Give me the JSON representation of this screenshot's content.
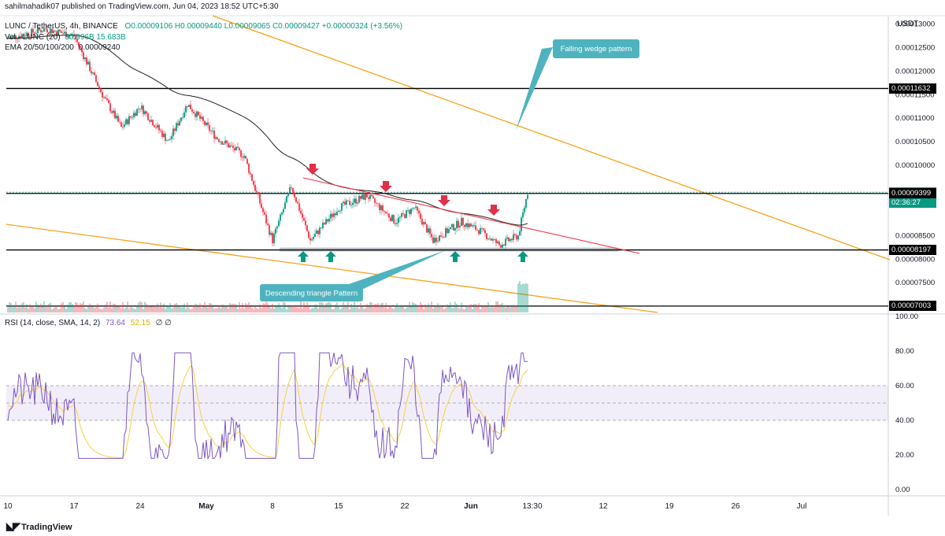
{
  "header": {
    "published": "sahilmahadik07 published on TradingView.com, Jun 04, 2023 18:52 UTC+5:30",
    "symbol": "LUNC / TetherUS, 4h, BINANCE",
    "ohlc": "O0.00009106 H0.00009440 L0.00009065 C0.00009427 +0.00000324 (+3.56%)",
    "vol_label": "Vol · LUNC (20)",
    "vol_values": "30.996B  15.683B",
    "ema_label": "EMA 20/50/100/200",
    "ema_value": "0.00009240",
    "currency": "USDT"
  },
  "price_axis": {
    "ticks": [
      "0.00013000",
      "0.00012500",
      "0.00012000",
      "0.00011500",
      "0.00011000",
      "0.00010500",
      "0.00010000",
      "0.00008500",
      "0.00008000",
      "0.00007500"
    ],
    "tick_values": [
      0.00013,
      0.000125,
      0.00012,
      0.000115,
      0.00011,
      0.000105,
      0.0001,
      8.5e-05,
      8e-05,
      7.5e-05
    ],
    "boxes": [
      {
        "text": "0.00011632",
        "value": 0.00011632,
        "color": "#000000"
      },
      {
        "text": "0.00009427",
        "value": 9.427e-05,
        "color": "#089981",
        "extra": "02:36:27"
      },
      {
        "text": "0.00009399",
        "value": 9.399e-05,
        "color": "#000000"
      },
      {
        "text": "0.00008197",
        "value": 8.197e-05,
        "color": "#000000"
      },
      {
        "text": "0.00007003",
        "value": 7.003e-05,
        "color": "#000000"
      }
    ],
    "range": [
      6.85e-05,
      0.0001318
    ]
  },
  "rsi": {
    "label": "RSI (14, close, SMA, 14, 2)",
    "value": "73.64",
    "sma_value": "52.15",
    "extra": "∅  ∅",
    "ticks": [
      "100.00",
      "80.00",
      "60.00",
      "40.00",
      "20.00",
      "0.00"
    ],
    "tick_values": [
      100,
      80,
      60,
      40,
      20,
      0
    ],
    "upper_band": 60,
    "lower_band": 40,
    "mid_band": 50
  },
  "time_axis": {
    "labels": [
      "10",
      "17",
      "24",
      "May",
      "8",
      "15",
      "22",
      "Jun",
      "13:30",
      "12",
      "19",
      "26",
      "Jul"
    ],
    "bold": [
      "May",
      "Jun"
    ]
  },
  "annotations": {
    "falling_wedge": "Falling wedge pattern",
    "descending_triangle": "Descending triangle Pattern"
  },
  "colors": {
    "up": "#089981",
    "down": "#f23645",
    "ema": "#222222",
    "wedge": "#f7a21b",
    "triangle": "#f23645",
    "callout": "#4fb3bf",
    "rsi_line": "#7e57c2",
    "rsi_sma": "#f5d142",
    "support_zone": "#b2b5be"
  },
  "brand": "TradingView",
  "chart_data": {
    "type": "candlestick",
    "symbol": "LUNC/USDT",
    "timeframe": "4h",
    "close_approx": [
      {
        "date": "Apr 10",
        "close": 0.000127
      },
      {
        "date": "Apr 14",
        "close": 0.000129
      },
      {
        "date": "Apr 17",
        "close": 0.0001275
      },
      {
        "date": "Apr 20",
        "close": 0.000115
      },
      {
        "date": "Apr 22",
        "close": 0.000108
      },
      {
        "date": "Apr 24",
        "close": 0.0001125
      },
      {
        "date": "Apr 27",
        "close": 0.000105
      },
      {
        "date": "Apr 29",
        "close": 0.000113
      },
      {
        "date": "May 2",
        "close": 0.000106
      },
      {
        "date": "May 5",
        "close": 0.000102
      },
      {
        "date": "May 8",
        "close": 8.4e-05
      },
      {
        "date": "May 10",
        "close": 9.55e-05
      },
      {
        "date": "May 12",
        "close": 8.4e-05
      },
      {
        "date": "May 15",
        "close": 9.1e-05
      },
      {
        "date": "May 18",
        "close": 9.35e-05
      },
      {
        "date": "May 21",
        "close": 8.8e-05
      },
      {
        "date": "May 23",
        "close": 9.1e-05
      },
      {
        "date": "May 25",
        "close": 8.4e-05
      },
      {
        "date": "May 28",
        "close": 8.8e-05
      },
      {
        "date": "May 30",
        "close": 8.6e-05
      },
      {
        "date": "Jun 1",
        "close": 8.3e-05
      },
      {
        "date": "Jun 3",
        "close": 8.5e-05
      },
      {
        "date": "Jun 4",
        "close": 9.427e-05
      }
    ],
    "levels": [
      0.00011632,
      9.399e-05,
      8.197e-05,
      7.003e-05
    ]
  }
}
